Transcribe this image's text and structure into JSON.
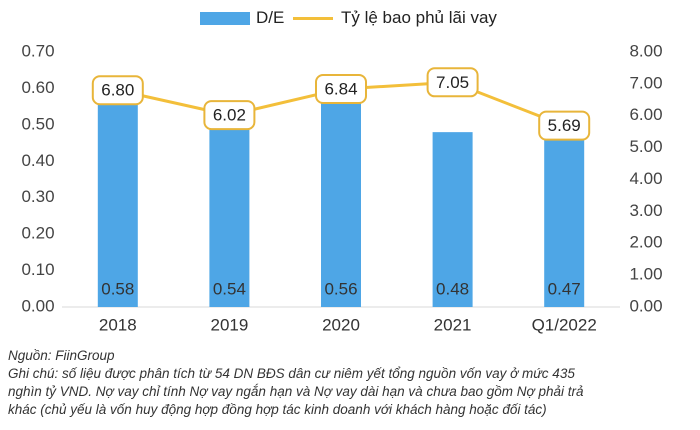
{
  "legend": {
    "bar_label": "D/E",
    "line_label": "Tỷ lệ bao phủ lãi vay"
  },
  "colors": {
    "bar": "#4ea6e6",
    "line": "#f3bf3a",
    "label_border": "#e8b53a",
    "axis_text": "#444444"
  },
  "chart_data": {
    "type": "bar",
    "categories": [
      "2018",
      "2019",
      "2020",
      "2021",
      "Q1/2022"
    ],
    "series": [
      {
        "name": "D/E",
        "type": "bar",
        "axis": "left",
        "values": [
          0.58,
          0.54,
          0.56,
          0.48,
          0.47
        ]
      },
      {
        "name": "Tỷ lệ bao phủ lãi vay",
        "type": "line",
        "axis": "right",
        "values": [
          6.8,
          6.02,
          6.84,
          7.05,
          5.69
        ]
      }
    ],
    "bar_labels": [
      "0.58",
      "0.54",
      "0.56",
      "0.48",
      "0.47"
    ],
    "line_labels": [
      "6.80",
      "6.02",
      "6.84",
      "7.05",
      "5.69"
    ],
    "y_left": {
      "ylim": [
        0,
        0.7
      ],
      "ticks": [
        "0.00",
        "0.10",
        "0.20",
        "0.30",
        "0.40",
        "0.50",
        "0.60",
        "0.70"
      ]
    },
    "y_right": {
      "ylim": [
        0,
        8
      ],
      "ticks": [
        "0.00",
        "1.00",
        "2.00",
        "3.00",
        "4.00",
        "5.00",
        "6.00",
        "7.00",
        "8.00"
      ]
    },
    "grid": false,
    "legend_position": "top-center"
  },
  "notes": {
    "source": "Nguồn: FiinGroup",
    "note_line1": "Ghi chú: số liệu được phân tích từ 54 DN BĐS dân cư niêm yết tổng nguồn vốn vay ở mức 435",
    "note_line2": "nghìn tỷ VND. Nợ vay chỉ tính Nợ vay ngắn hạn và Nợ vay dài hạn và chưa bao gồm Nợ phải trả",
    "note_line3": "khác (chủ yếu là vốn huy động hợp đồng hợp tác kinh doanh với khách hàng hoặc đối tác)"
  }
}
